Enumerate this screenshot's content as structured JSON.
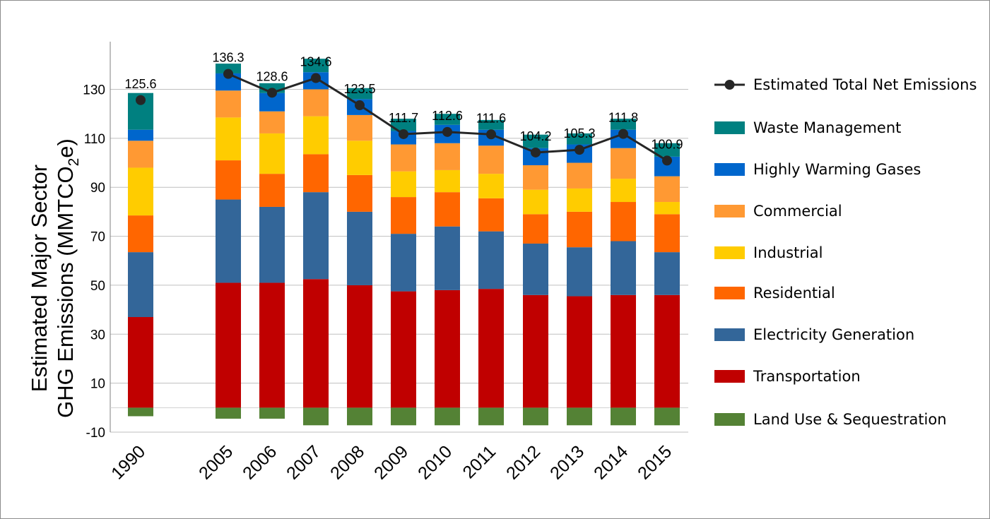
{
  "chart_data": {
    "type": "bar",
    "stacked": true,
    "ylabel_line1": "Estimated Major Sector",
    "ylabel_line2_prefix": "GHG Emissions (MMTCO",
    "ylabel_line2_sub": "2",
    "ylabel_line2_suffix": "e)",
    "ylim": [
      -10,
      140
    ],
    "yticks": [
      "-10",
      "10",
      "30",
      "50",
      "70",
      "90",
      "110",
      "130"
    ],
    "ytick_values": [
      -10,
      10,
      30,
      50,
      70,
      90,
      110,
      130
    ],
    "grid": true,
    "legend_position": "right",
    "categories": [
      "1990",
      "2005",
      "2006",
      "2007",
      "2008",
      "2009",
      "2010",
      "2011",
      "2012",
      "2013",
      "2014",
      "2015"
    ],
    "series": [
      {
        "name": "Land Use & Sequestration",
        "color": "#548235",
        "values": [
          -3.5,
          -4.5,
          -4.5,
          -7.2,
          -7.2,
          -7.2,
          -7.2,
          -7.2,
          -7.2,
          -7.2,
          -7.2,
          -7.2
        ]
      },
      {
        "name": "Transportation",
        "color": "#c00000",
        "values": [
          37.0,
          51.0,
          51.0,
          52.5,
          50.0,
          47.5,
          48.0,
          48.5,
          46.0,
          45.5,
          46.0,
          46.0
        ]
      },
      {
        "name": "Electricity Generation",
        "color": "#336699",
        "values": [
          26.5,
          34.0,
          31.0,
          35.5,
          30.0,
          23.5,
          26.0,
          23.5,
          21.0,
          20.0,
          22.0,
          17.5
        ]
      },
      {
        "name": "Residential",
        "color": "#ff6600",
        "values": [
          15.0,
          16.0,
          13.5,
          15.5,
          15.0,
          15.0,
          14.0,
          13.5,
          12.0,
          14.5,
          16.0,
          15.5
        ]
      },
      {
        "name": "Industrial",
        "color": "#ffcc00",
        "values": [
          19.5,
          17.5,
          16.5,
          15.5,
          14.0,
          10.5,
          9.0,
          10.0,
          10.0,
          9.5,
          9.5,
          5.0
        ]
      },
      {
        "name": "Commercial",
        "color": "#ff9933",
        "values": [
          11.0,
          11.0,
          9.0,
          11.0,
          10.5,
          11.0,
          11.0,
          11.5,
          10.0,
          10.5,
          12.5,
          10.5
        ]
      },
      {
        "name": "Highly Warming Gases",
        "color": "#0066cc",
        "values": [
          4.5,
          7.0,
          7.5,
          7.0,
          6.5,
          5.5,
          7.5,
          6.5,
          7.0,
          7.5,
          7.5,
          8.0
        ]
      },
      {
        "name": "Waste Management",
        "color": "#008080",
        "values": [
          15.0,
          4.0,
          4.0,
          5.5,
          4.5,
          5.0,
          4.5,
          4.0,
          5.5,
          4.5,
          4.5,
          5.5
        ]
      }
    ],
    "line_series": {
      "name": "Estimated Total Net Emissions",
      "color": "#262626",
      "values": [
        125.6,
        136.3,
        128.6,
        134.6,
        123.5,
        111.7,
        112.6,
        111.6,
        104.2,
        105.3,
        111.8,
        100.9
      ],
      "labels": [
        "125.6",
        "136.3",
        "128.6",
        "134.6",
        "123.5",
        "111.7",
        "112.6",
        "111.6",
        "104.2",
        "105.3",
        "111.8",
        "100.9"
      ]
    },
    "legend_order": [
      "Estimated Total Net Emissions",
      "Waste Management",
      "Highly Warming Gases",
      "Commercial",
      "Industrial",
      "Residential",
      "Electricity Generation",
      "Transportation",
      "Land Use & Sequestration"
    ]
  }
}
